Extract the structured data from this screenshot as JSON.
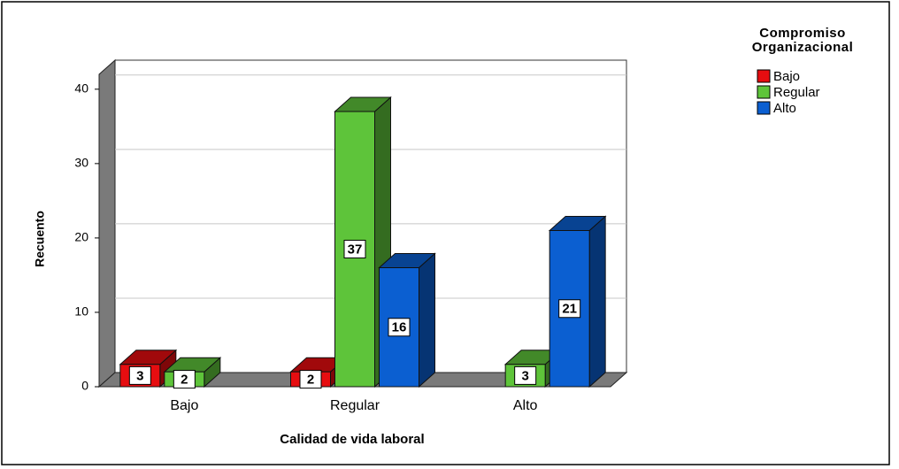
{
  "chart_data": {
    "type": "bar3d",
    "x_label": "Calidad de vida laboral",
    "y_label": "Recuento",
    "legend_title": "Compromiso Organizacional",
    "categories": [
      "Bajo",
      "Regular",
      "Alto"
    ],
    "series": [
      {
        "name": "Bajo",
        "color": "#e60d10",
        "values": [
          3,
          2,
          null
        ]
      },
      {
        "name": "Regular",
        "color": "#5ec43a",
        "values": [
          2,
          37,
          3
        ]
      },
      {
        "name": "Alto",
        "color": "#0b5fd1",
        "values": [
          null,
          16,
          21
        ]
      }
    ],
    "ylim": [
      0,
      42
    ],
    "yticks": [
      0,
      10,
      20,
      30,
      40
    ],
    "grid": true,
    "legend": "top-right"
  }
}
